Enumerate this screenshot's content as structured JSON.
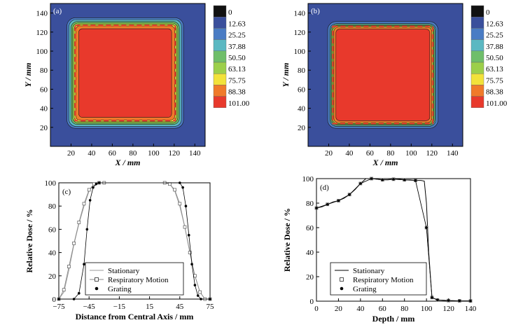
{
  "colors": {
    "dose_levels": [
      "#111111",
      "#3a4f9c",
      "#4a7cc4",
      "#5bb8c2",
      "#6fbe6a",
      "#9ccf4a",
      "#f2e23a",
      "#f07a2a",
      "#e8392c"
    ],
    "field_edge": "#e8392c",
    "inner_outline": "#f2e23a"
  },
  "chart_data": [
    {
      "id": "a",
      "panel_label": "(a)",
      "type": "heatmap",
      "xlabel": "X / mm",
      "ylabel": "Y / mm",
      "xlim": [
        0,
        150
      ],
      "ylim": [
        0,
        150
      ],
      "xticks": [
        "20",
        "40",
        "60",
        "80",
        "100",
        "120",
        "140"
      ],
      "yticks": [
        "20",
        "40",
        "60",
        "80",
        "100",
        "120",
        "140"
      ],
      "colorbar_levels": [
        "0",
        "12.63",
        "25.25",
        "37.88",
        "50.50",
        "63.13",
        "75.75",
        "88.38",
        "101.00"
      ],
      "field_mm": {
        "x": [
          25,
          120
        ],
        "y": [
          28,
          126
        ]
      }
    },
    {
      "id": "b",
      "panel_label": "(b)",
      "type": "heatmap",
      "xlabel": "X / mm",
      "ylabel": "Y / mm",
      "xlim": [
        0,
        150
      ],
      "ylim": [
        0,
        150
      ],
      "xticks": [
        "20",
        "40",
        "60",
        "80",
        "100",
        "120",
        "140"
      ],
      "yticks": [
        "20",
        "40",
        "60",
        "80",
        "100",
        "120",
        "140"
      ],
      "colorbar_levels": [
        "0",
        "12.63",
        "25.25",
        "37.88",
        "50.50",
        "63.13",
        "75.75",
        "88.38",
        "101.00"
      ],
      "field_mm": {
        "x": [
          25,
          120
        ],
        "y": [
          25,
          125
        ]
      }
    },
    {
      "id": "c",
      "panel_label": "(c)",
      "type": "line",
      "xlabel": "Distance from Central Axis / mm",
      "ylabel": "Relative Dose / %",
      "xlim": [
        -75,
        75
      ],
      "ylim": [
        0,
        100
      ],
      "xticks": [
        "−75",
        "−45",
        "−15",
        "15",
        "45",
        "75"
      ],
      "ytick_labels": [
        "0",
        "20",
        "40",
        "60",
        "80",
        "100"
      ],
      "legend_location": "bottom-center",
      "series": [
        {
          "name": "Stationary",
          "style": "line",
          "x": [
            -75,
            -70,
            -65,
            -60,
            -55,
            -50,
            -45,
            -40,
            -35,
            30,
            35,
            40,
            45,
            50,
            55,
            60,
            65,
            70,
            75
          ],
          "values": [
            0,
            6,
            25,
            47,
            65,
            80,
            93,
            99,
            100,
            100,
            99,
            93,
            80,
            62,
            40,
            20,
            6,
            0,
            0
          ]
        },
        {
          "name": "Respiratory Motion",
          "style": "open-square",
          "x": [
            -75,
            -70,
            -65,
            -60,
            -55,
            -50,
            -45,
            -40,
            -35,
            -30,
            30,
            35,
            40,
            45,
            50,
            55,
            60,
            65,
            70,
            75
          ],
          "values": [
            0,
            8,
            28,
            48,
            66,
            82,
            94,
            99,
            100,
            100,
            100,
            99,
            94,
            82,
            62,
            40,
            20,
            6,
            0,
            0
          ]
        },
        {
          "name": "Grating",
          "style": "dot",
          "x": [
            -75,
            -60,
            -55,
            -50,
            -47,
            -44,
            -41,
            -38,
            -35,
            45,
            48,
            51,
            54,
            57,
            60,
            63,
            66,
            75
          ],
          "values": [
            0,
            0,
            5,
            30,
            60,
            85,
            96,
            99,
            100,
            100,
            96,
            80,
            55,
            30,
            12,
            3,
            0,
            0
          ]
        }
      ]
    },
    {
      "id": "d",
      "panel_label": "(d)",
      "type": "line",
      "xlabel": "Depth / mm",
      "ylabel": "Relative Dose / %",
      "xlim": [
        0,
        140
      ],
      "ylim": [
        0,
        100
      ],
      "xticks": [
        "0",
        "20",
        "40",
        "60",
        "80",
        "100",
        "120",
        "140"
      ],
      "ytick_labels": [
        "0",
        "20",
        "40",
        "60",
        "80",
        "100"
      ],
      "legend_location": "bottom-center",
      "series": [
        {
          "name": "Stationary",
          "style": "line",
          "x": [
            0,
            5,
            10,
            15,
            20,
            25,
            30,
            35,
            40,
            45,
            50,
            55,
            60,
            65,
            70,
            75,
            80,
            85,
            90,
            95,
            98,
            100,
            102,
            105,
            110,
            120,
            130,
            140
          ],
          "values": [
            76,
            77,
            79,
            81,
            82,
            84,
            87,
            91,
            96,
            100,
            100,
            99.5,
            99,
            99,
            99.5,
            99.5,
            99,
            99,
            98.5,
            98.5,
            98,
            80,
            40,
            3,
            1,
            0.5,
            0.3,
            0.2
          ]
        },
        {
          "name": "Respiratory Motion",
          "style": "open-square",
          "x": [
            0,
            10,
            20,
            30,
            40,
            50,
            60,
            70,
            80,
            90,
            100,
            105,
            110,
            120,
            130,
            140
          ],
          "values": [
            76,
            79,
            82,
            87,
            96,
            100,
            99,
            99.5,
            99,
            98.5,
            60,
            3,
            1,
            0.5,
            0.3,
            0.2
          ]
        },
        {
          "name": "Grating",
          "style": "dot",
          "x": [
            0,
            10,
            20,
            30,
            40,
            50,
            60,
            70,
            80,
            90,
            100,
            105,
            110,
            120,
            130,
            140
          ],
          "values": [
            76,
            79,
            82,
            87,
            96,
            100,
            99,
            99.5,
            99,
            98.5,
            60,
            3,
            1,
            0.5,
            0.3,
            0.2
          ]
        }
      ]
    }
  ]
}
